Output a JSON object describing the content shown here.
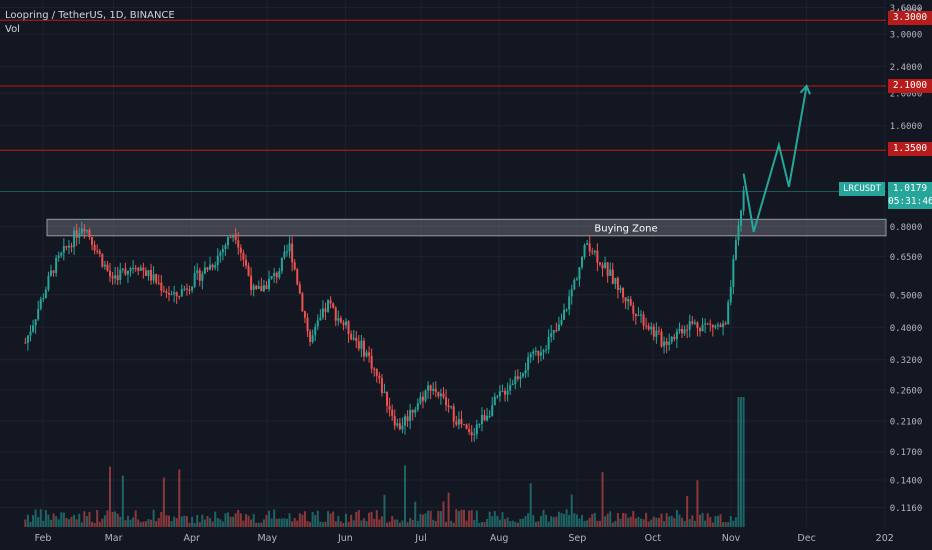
{
  "legend": {
    "title": "Loopring / TetherUS, 1D, BINANCE",
    "vol": "Vol"
  },
  "price_axis": {
    "currency": "USDT",
    "ticks": [
      "3.6000",
      "3.0000",
      "2.4000",
      "2.0000",
      "1.6000",
      "1.3500",
      "0.8000",
      "0.6500",
      "0.5000",
      "0.4000",
      "0.3200",
      "0.2600",
      "0.2100",
      "0.1700",
      "0.1400",
      "0.1160"
    ]
  },
  "time_axis": {
    "ticks": [
      "Feb",
      "Mar",
      "Apr",
      "May",
      "Jun",
      "Jul",
      "Aug",
      "Sep",
      "Oct",
      "Nov",
      "Dec",
      "202"
    ]
  },
  "horizontal_lines": [
    {
      "value": "3.3000",
      "label": "3.3000",
      "color": "#b71c1c"
    },
    {
      "value": "2.1000",
      "label": "2.1000",
      "color": "#b71c1c"
    },
    {
      "value": "1.3500",
      "label": "1.3500",
      "color": "#b71c1c"
    }
  ],
  "current_price": {
    "symbol": "LRCUSDT",
    "price": "1.0179",
    "countdown": "05:31:46"
  },
  "zone": {
    "label": "Buying Zone",
    "low": 0.75,
    "high": 0.84
  },
  "colors": {
    "up": "#26a69a",
    "down": "#ef5350",
    "level": "#b71c1c",
    "zone": "#787b86",
    "projection": "#26a69a"
  },
  "chart_data": {
    "type": "candlestick",
    "symbol": "LRCUSDT",
    "interval": "1D",
    "y_scale": "log",
    "ylim": [
      0.105,
      3.6
    ],
    "x_range": [
      "2021-01-25",
      "2022-01-01"
    ],
    "price_path": [
      [
        "2021-01-25",
        0.36
      ],
      [
        "2021-02-05",
        0.6
      ],
      [
        "2021-02-17",
        0.82
      ],
      [
        "2021-02-28",
        0.56
      ],
      [
        "2021-03-10",
        0.62
      ],
      [
        "2021-03-25",
        0.49
      ],
      [
        "2021-04-10",
        0.63
      ],
      [
        "2021-04-18",
        0.78
      ],
      [
        "2021-04-26",
        0.5
      ],
      [
        "2021-05-05",
        0.58
      ],
      [
        "2021-05-10",
        0.7
      ],
      [
        "2021-05-18",
        0.36
      ],
      [
        "2021-05-25",
        0.47
      ],
      [
        "2021-06-10",
        0.33
      ],
      [
        "2021-06-22",
        0.2
      ],
      [
        "2021-07-05",
        0.27
      ],
      [
        "2021-07-20",
        0.19
      ],
      [
        "2021-08-05",
        0.27
      ],
      [
        "2021-08-25",
        0.4
      ],
      [
        "2021-09-05",
        0.72
      ],
      [
        "2021-09-20",
        0.49
      ],
      [
        "2021-10-05",
        0.36
      ],
      [
        "2021-10-15",
        0.41
      ],
      [
        "2021-10-30",
        0.4
      ],
      [
        "2021-11-02",
        0.62
      ],
      [
        "2021-11-06",
        1.02
      ]
    ],
    "projection": [
      [
        "2021-11-06",
        1.15
      ],
      [
        "2021-11-10",
        0.77
      ],
      [
        "2021-11-20",
        1.4
      ],
      [
        "2021-11-24",
        1.05
      ],
      [
        "2021-12-01",
        2.1
      ]
    ]
  }
}
